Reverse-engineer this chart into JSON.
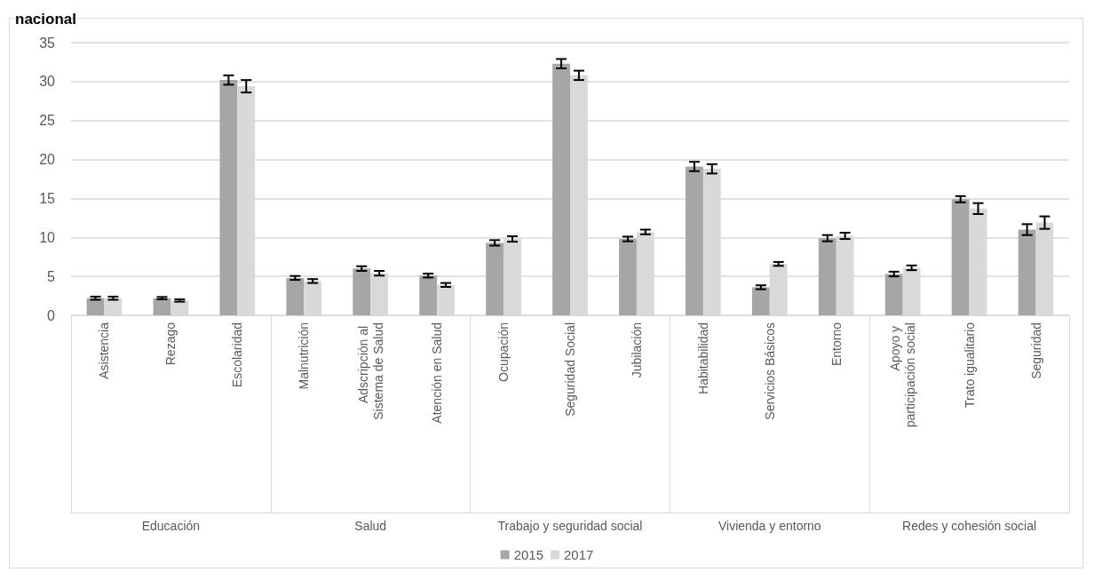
{
  "chart_data": {
    "type": "bar",
    "title": "nacional",
    "categories": [
      "Asistencia",
      "Rezago",
      "Escolaridad",
      "Malnutrición",
      "Adscripción al Sistema de Salud",
      "Atención en Salud",
      "Ocupación",
      "Seguridad Social",
      "Jubilación",
      "Habitabilidad",
      "Servicios Básicos",
      "Entorno",
      "Apoyo y participación social",
      "Trato igualitario",
      "Seguridad"
    ],
    "annotations": [
      "Educación",
      "Salud",
      "Trabajo y seguridad social",
      "Vivienda y entorno",
      "Redes y cohesión social"
    ],
    "series": [
      {
        "name": "2015",
        "color": "#a6a6a6",
        "values": [
          2.2,
          2.2,
          30.2,
          4.8,
          6.0,
          5.1,
          9.3,
          32.3,
          9.8,
          19.1,
          3.6,
          9.9,
          5.3,
          14.9,
          11.0
        ],
        "errors": [
          0.2,
          0.15,
          0.6,
          0.25,
          0.3,
          0.25,
          0.35,
          0.6,
          0.3,
          0.6,
          0.25,
          0.4,
          0.3,
          0.4,
          0.7
        ]
      },
      {
        "name": "2017",
        "color": "#d9d9d9",
        "values": [
          2.2,
          1.9,
          29.4,
          4.4,
          5.4,
          3.9,
          9.8,
          30.8,
          10.7,
          18.8,
          6.6,
          10.2,
          6.1,
          13.7,
          11.9
        ],
        "errors": [
          0.2,
          0.15,
          0.8,
          0.25,
          0.3,
          0.25,
          0.35,
          0.6,
          0.3,
          0.6,
          0.25,
          0.4,
          0.3,
          0.7,
          0.8
        ]
      }
    ],
    "ylim": [
      0,
      35
    ],
    "yticks": [
      0,
      5,
      10,
      15,
      20,
      25,
      30,
      35
    ],
    "grid": "y",
    "legend": "bottom"
  }
}
